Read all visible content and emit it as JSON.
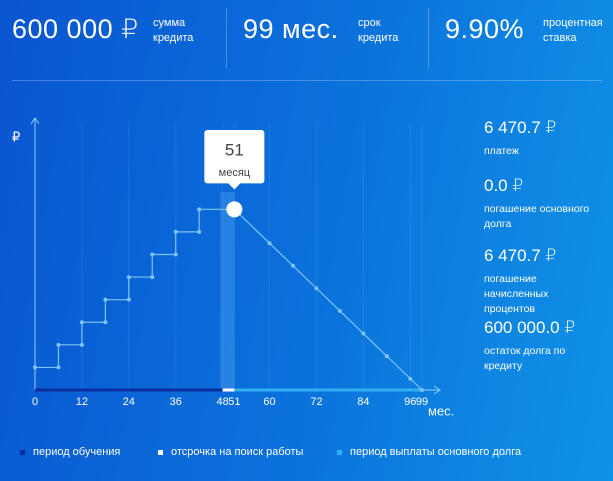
{
  "header": {
    "items": [
      {
        "value": "600 000 ₽",
        "label": "сумма кредита"
      },
      {
        "value": "99 мес.",
        "label": "срок кредита"
      },
      {
        "value": "9.90%",
        "label": "процентная ставка"
      }
    ]
  },
  "summary": {
    "items": [
      {
        "value": "6 470.7 ₽",
        "label": "платеж"
      },
      {
        "value": "0.0 ₽",
        "label": "погашение основного долга"
      },
      {
        "value": "6 470.7 ₽",
        "label": "погашение начисленных процентов"
      },
      {
        "value": "600 000.0 ₽",
        "label": "остаток долга по кредиту"
      }
    ]
  },
  "chart_data": {
    "type": "line",
    "y_label": "₽",
    "x_label": "мес.",
    "x": [
      0,
      6,
      6,
      12,
      12,
      18,
      18,
      24,
      24,
      30,
      30,
      36,
      36,
      42,
      42,
      51,
      60,
      66,
      72,
      78,
      84,
      90,
      96,
      99
    ],
    "values": [
      75000,
      75000,
      150000,
      150000,
      225000,
      225000,
      300000,
      300000,
      375000,
      375000,
      450000,
      450000,
      525000,
      525000,
      600000,
      600000,
      487500,
      412500,
      337500,
      262500,
      187500,
      112500,
      37500,
      0
    ],
    "color": "#7fc4f2",
    "xlim": [
      0,
      99
    ],
    "ylim": [
      0,
      890000
    ],
    "xticks": [
      0,
      12,
      24,
      36,
      48,
      51,
      60,
      72,
      84,
      96,
      99
    ],
    "selected": {
      "month": 51,
      "label": "месяц"
    },
    "periods": [
      {
        "name": "период обучения",
        "color": "#0a2f9e",
        "range": [
          0,
          48
        ]
      },
      {
        "name": "отсрочка на поиск работы",
        "color": "#ffffff",
        "range": [
          48,
          51
        ]
      },
      {
        "name": "период выплаты основного долга",
        "color": "#33aef0",
        "range": [
          51,
          99
        ]
      }
    ]
  }
}
